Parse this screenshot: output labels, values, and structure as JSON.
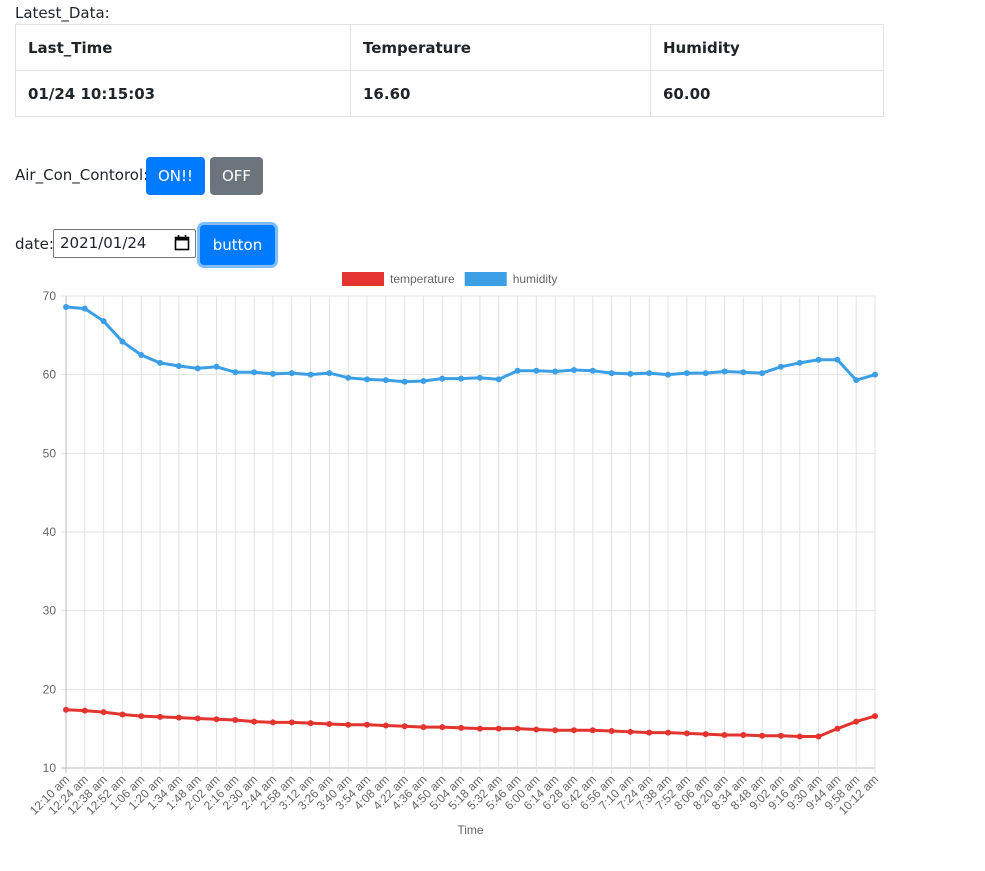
{
  "header": {
    "label": "Latest_Data:"
  },
  "table": {
    "columns": [
      "Last_Time",
      "Temperature",
      "Humidity"
    ],
    "rows": [
      [
        "01/24 10:15:03",
        "16.60",
        "60.00"
      ]
    ]
  },
  "control": {
    "label": "Air_Con_Contorol:",
    "on": "ON!!",
    "off": "OFF"
  },
  "date": {
    "label": "date:",
    "value": "2021/01/24",
    "button": "button"
  },
  "chart_data": {
    "type": "line",
    "x_label": "Time",
    "categories": [
      "12:10 am",
      "12:24 am",
      "12:38 am",
      "12:52 am",
      "1:06 am",
      "1:20 am",
      "1:34 am",
      "1:48 am",
      "2:02 am",
      "2:16 am",
      "2:30 am",
      "2:44 am",
      "2:58 am",
      "3:12 am",
      "3:26 am",
      "3:40 am",
      "3:54 am",
      "4:08 am",
      "4:22 am",
      "4:36 am",
      "4:50 am",
      "5:04 am",
      "5:18 am",
      "5:32 am",
      "5:46 am",
      "6:00 am",
      "6:14 am",
      "6:28 am",
      "6:42 am",
      "6:56 am",
      "7:10 am",
      "7:24 am",
      "7:38 am",
      "7:52 am",
      "8:06 am",
      "8:20 am",
      "8:34 am",
      "8:48 am",
      "9:02 am",
      "9:16 am",
      "9:30 am",
      "9:44 am",
      "9:58 am",
      "10:12 am"
    ],
    "series": [
      {
        "name": "temperature",
        "color": "#e3342f",
        "values": [
          17.4,
          17.3,
          17.1,
          16.8,
          16.6,
          16.5,
          16.4,
          16.3,
          16.2,
          16.1,
          15.9,
          15.8,
          15.8,
          15.7,
          15.6,
          15.5,
          15.5,
          15.4,
          15.3,
          15.2,
          15.2,
          15.1,
          15.0,
          15.0,
          15.0,
          14.9,
          14.8,
          14.8,
          14.8,
          14.7,
          14.6,
          14.5,
          14.5,
          14.4,
          14.3,
          14.2,
          14.2,
          14.1,
          14.1,
          14.0,
          14.0,
          15.0,
          15.9,
          16.6
        ]
      },
      {
        "name": "humidity",
        "color": "#3c9fe6",
        "values": [
          68.6,
          68.4,
          66.8,
          64.2,
          62.5,
          61.5,
          61.1,
          60.8,
          61.0,
          60.3,
          60.3,
          60.1,
          60.2,
          60.0,
          60.2,
          59.6,
          59.4,
          59.3,
          59.1,
          59.2,
          59.5,
          59.5,
          59.6,
          59.4,
          60.5,
          60.5,
          60.4,
          60.6,
          60.5,
          60.2,
          60.1,
          60.2,
          60.0,
          60.2,
          60.2,
          60.4,
          60.3,
          60.2,
          61.0,
          61.5,
          61.9,
          61.9,
          59.3,
          60.0
        ]
      }
    ],
    "ylim": [
      10,
      70
    ],
    "yticks": [
      10,
      20,
      30,
      40,
      50,
      60,
      70
    ],
    "grid": true,
    "legend": "top"
  }
}
